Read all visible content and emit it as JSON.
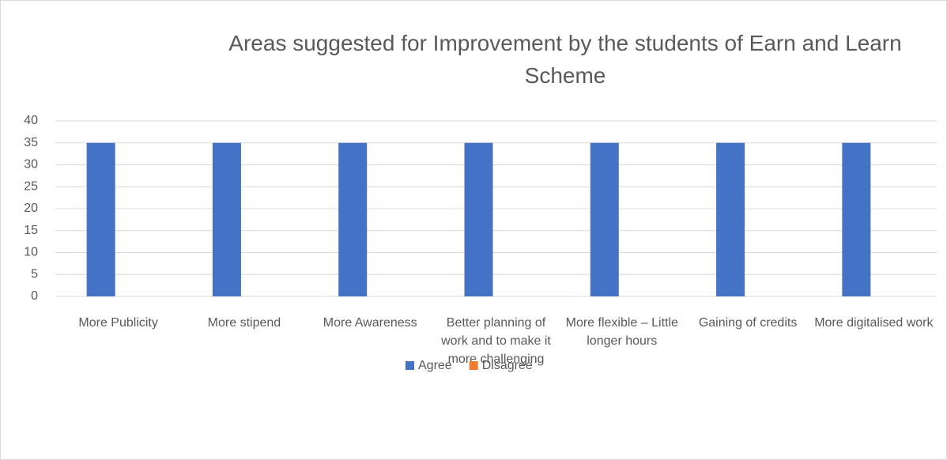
{
  "chart_data": {
    "type": "bar",
    "title": "Areas suggested for Improvement by the students of Earn and Learn Scheme",
    "categories": [
      "More Publicity",
      "More stipend",
      "More Awareness",
      "Better planning of work and to make it more challenging",
      "More flexible – Little longer hours",
      "Gaining of credits",
      "More digitalised work"
    ],
    "series": [
      {
        "name": "Agree",
        "color": "#4472c4",
        "values": [
          35,
          35,
          35,
          35,
          35,
          35,
          35
        ]
      },
      {
        "name": "Disagree",
        "color": "#ed7d31",
        "values": [
          0,
          0,
          0,
          0,
          0,
          0,
          0
        ]
      }
    ],
    "ylim": [
      0,
      40
    ],
    "yticks": [
      0,
      5,
      10,
      15,
      20,
      25,
      30,
      35,
      40
    ],
    "grid": true,
    "legend": "bottom"
  }
}
